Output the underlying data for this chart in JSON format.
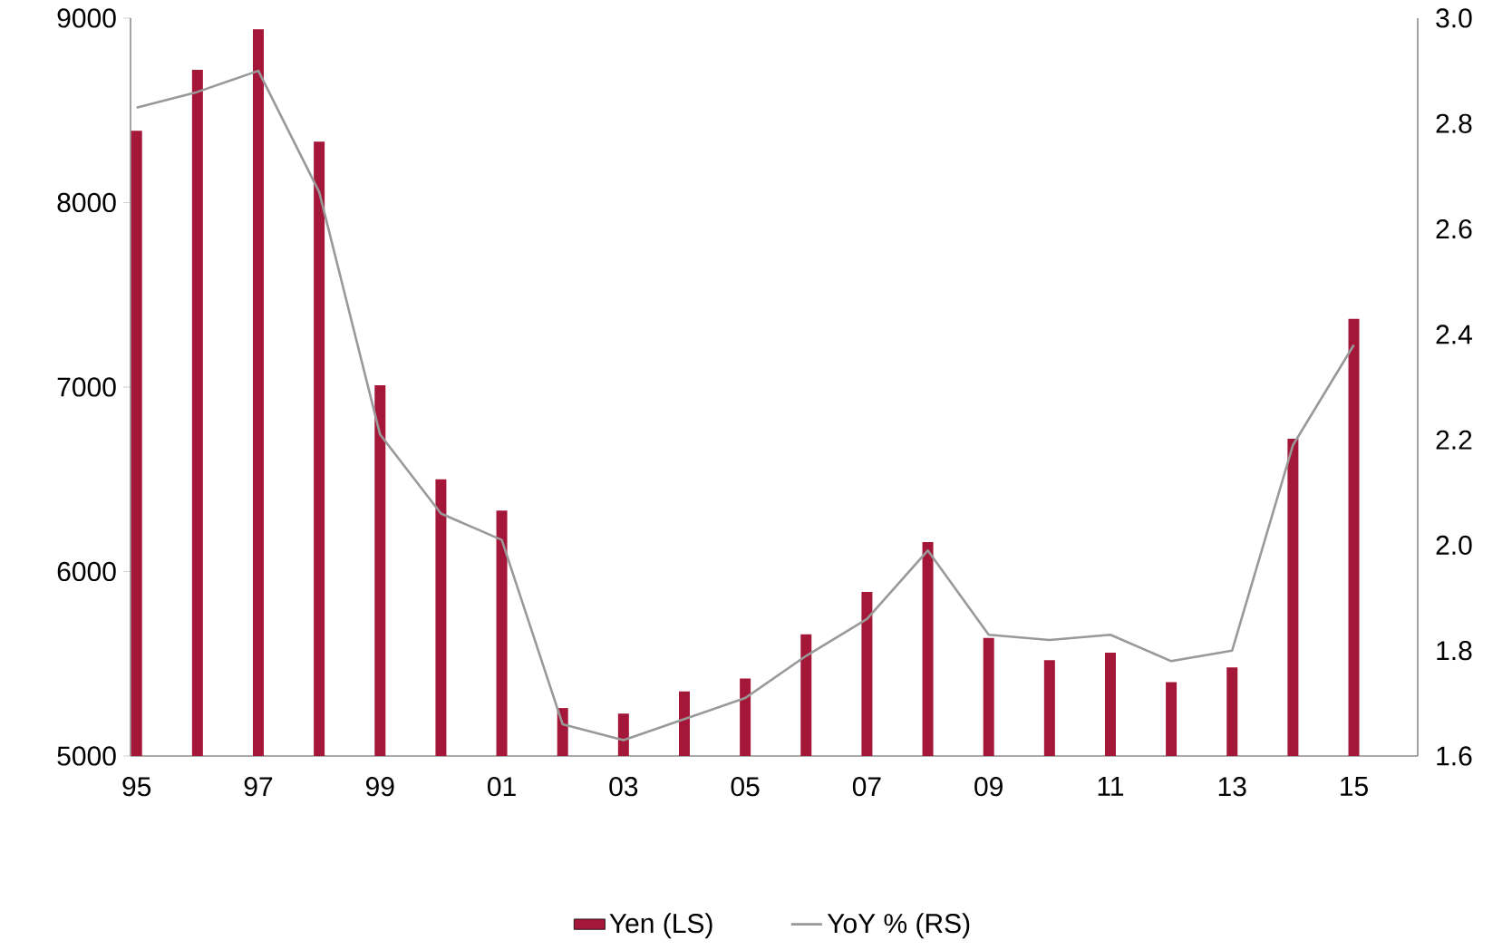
{
  "chart_data": {
    "type": "bar",
    "categories": [
      "95",
      null,
      "97",
      null,
      "99",
      null,
      "01",
      null,
      "03",
      null,
      "05",
      null,
      "07",
      null,
      "09",
      null,
      "11",
      null,
      "13",
      null,
      "15"
    ],
    "series": [
      {
        "name": "Yen (LS)",
        "color": "#a51739",
        "values": [
          8390,
          8720,
          8940,
          8330,
          7010,
          6500,
          6330,
          5260,
          5230,
          5350,
          5420,
          5660,
          5890,
          6160,
          5640,
          5520,
          5560,
          5400,
          5480,
          6720,
          7370
        ]
      },
      {
        "name": "YoY % (RS)",
        "type": "line",
        "axis": "y2",
        "color": "#999999",
        "values": [
          2.83,
          2.86,
          2.9,
          2.67,
          2.21,
          2.06,
          2.01,
          1.66,
          1.63,
          1.67,
          1.71,
          1.79,
          1.86,
          1.99,
          1.83,
          1.82,
          1.83,
          1.78,
          1.8,
          2.19,
          2.38
        ]
      }
    ],
    "ylim": [
      5000,
      9000
    ],
    "yticks": [
      5000,
      6000,
      7000,
      8000,
      9000
    ],
    "y2lim": [
      1.6,
      3.0
    ],
    "y2ticks": [
      1.6,
      1.8,
      {
        "value": 2.0,
        "label": "2.0"
      },
      2.2,
      2.4,
      2.6,
      2.8,
      {
        "value": 3.0,
        "label": "3.0"
      }
    ],
    "legend": "bottom"
  }
}
